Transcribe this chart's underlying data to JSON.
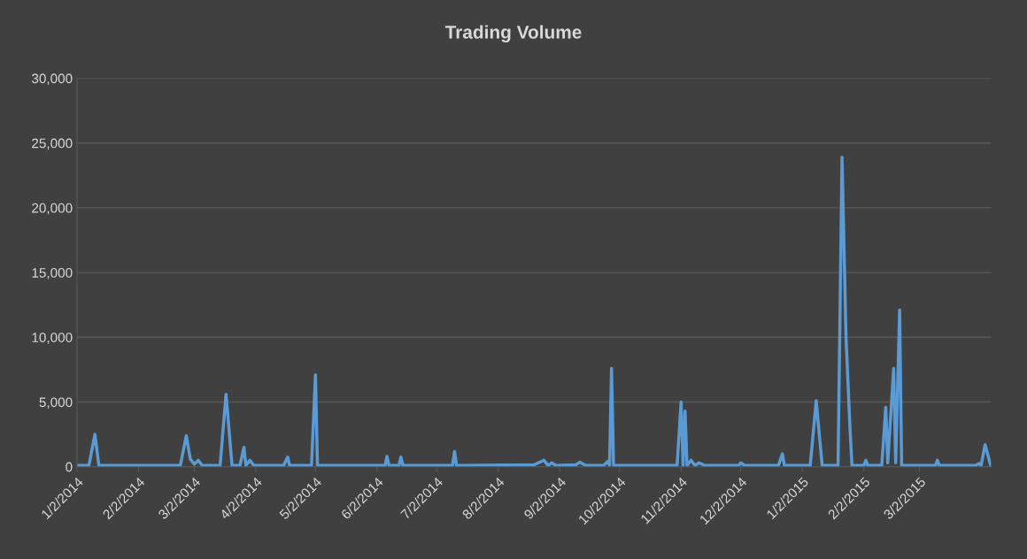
{
  "chart_data": {
    "type": "line",
    "title": "Trading Volume",
    "x": [
      "2014-01-02",
      "2014-01-08",
      "2014-01-11",
      "2014-01-13",
      "2014-02-23",
      "2014-02-26",
      "2014-02-28",
      "2014-03-02",
      "2014-03-04",
      "2014-03-06",
      "2014-03-15",
      "2014-03-18",
      "2014-03-21",
      "2014-03-25",
      "2014-03-27",
      "2014-03-28",
      "2014-03-30",
      "2014-04-01",
      "2014-04-16",
      "2014-04-18",
      "2014-04-19",
      "2014-04-30",
      "2014-05-02",
      "2014-05-03",
      "2014-06-06",
      "2014-06-07",
      "2014-06-08",
      "2014-06-13",
      "2014-06-14",
      "2014-06-15",
      "2014-07-10",
      "2014-07-11",
      "2014-07-12",
      "2014-08-20",
      "2014-08-25",
      "2014-08-27",
      "2014-08-29",
      "2014-08-31",
      "2014-09-10",
      "2014-09-12",
      "2014-09-15",
      "2014-09-24",
      "2014-09-26",
      "2014-09-27",
      "2014-09-28",
      "2014-09-29",
      "2014-10-31",
      "2014-11-02",
      "2014-11-03",
      "2014-11-04",
      "2014-11-05",
      "2014-11-07",
      "2014-11-09",
      "2014-11-11",
      "2014-11-14",
      "2014-12-01",
      "2014-12-02",
      "2014-12-04",
      "2014-12-21",
      "2014-12-23",
      "2014-12-24",
      "2015-01-06",
      "2015-01-09",
      "2015-01-12",
      "2015-01-20",
      "2015-01-22",
      "2015-01-24",
      "2015-01-26",
      "2015-01-27",
      "2015-02-02",
      "2015-02-03",
      "2015-02-04",
      "2015-02-11",
      "2015-02-13",
      "2015-02-14",
      "2015-02-17",
      "2015-02-18",
      "2015-02-20",
      "2015-02-21",
      "2015-03-10",
      "2015-03-11",
      "2015-03-12",
      "2015-03-30",
      "2015-04-01",
      "2015-04-02",
      "2015-04-04",
      "2015-04-07"
    ],
    "series": [
      {
        "color": "#5b9bd5",
        "values": [
          100,
          100,
          2500,
          100,
          100,
          2400,
          600,
          200,
          500,
          100,
          100,
          5600,
          100,
          100,
          1500,
          100,
          500,
          100,
          100,
          750,
          100,
          100,
          7100,
          100,
          100,
          800,
          100,
          100,
          750,
          100,
          100,
          1200,
          100,
          150,
          500,
          100,
          300,
          100,
          150,
          350,
          100,
          100,
          400,
          100,
          7600,
          100,
          100,
          5000,
          100,
          4300,
          100,
          500,
          100,
          300,
          100,
          100,
          300,
          100,
          100,
          1000,
          100,
          100,
          5100,
          100,
          100,
          23900,
          10000,
          3000,
          100,
          100,
          500,
          100,
          100,
          4600,
          300,
          7600,
          300,
          12100,
          100,
          100,
          500,
          100,
          100,
          250,
          100,
          1700,
          0
        ]
      }
    ],
    "xlim": [
      "2014-01-02",
      "2015-04-07"
    ],
    "xticks": [
      {
        "value": "2014-01-02",
        "label": "1/2/2014"
      },
      {
        "value": "2014-02-02",
        "label": "2/2/2014"
      },
      {
        "value": "2014-03-02",
        "label": "3/2/2014"
      },
      {
        "value": "2014-04-02",
        "label": "4/2/2014"
      },
      {
        "value": "2014-05-02",
        "label": "5/2/2014"
      },
      {
        "value": "2014-06-02",
        "label": "6/2/2014"
      },
      {
        "value": "2014-07-02",
        "label": "7/2/2014"
      },
      {
        "value": "2014-08-02",
        "label": "8/2/2014"
      },
      {
        "value": "2014-09-02",
        "label": "9/2/2014"
      },
      {
        "value": "2014-10-02",
        "label": "10/2/2014"
      },
      {
        "value": "2014-11-02",
        "label": "11/2/2014"
      },
      {
        "value": "2014-12-02",
        "label": "12/2/2014"
      },
      {
        "value": "2015-01-02",
        "label": "1/2/2015"
      },
      {
        "value": "2015-02-02",
        "label": "2/2/2015"
      },
      {
        "value": "2015-03-02",
        "label": "3/2/2015"
      }
    ],
    "ylim": [
      0,
      30000
    ],
    "yticks": [
      {
        "value": 0,
        "label": "0"
      },
      {
        "value": 5000,
        "label": "5,000"
      },
      {
        "value": 10000,
        "label": "10,000"
      },
      {
        "value": 15000,
        "label": "15,000"
      },
      {
        "value": 20000,
        "label": "20,000"
      },
      {
        "value": 25000,
        "label": "25,000"
      },
      {
        "value": 30000,
        "label": "30,000"
      }
    ],
    "grid": "y",
    "legend": false,
    "marker": "none",
    "line_style": "solid"
  }
}
